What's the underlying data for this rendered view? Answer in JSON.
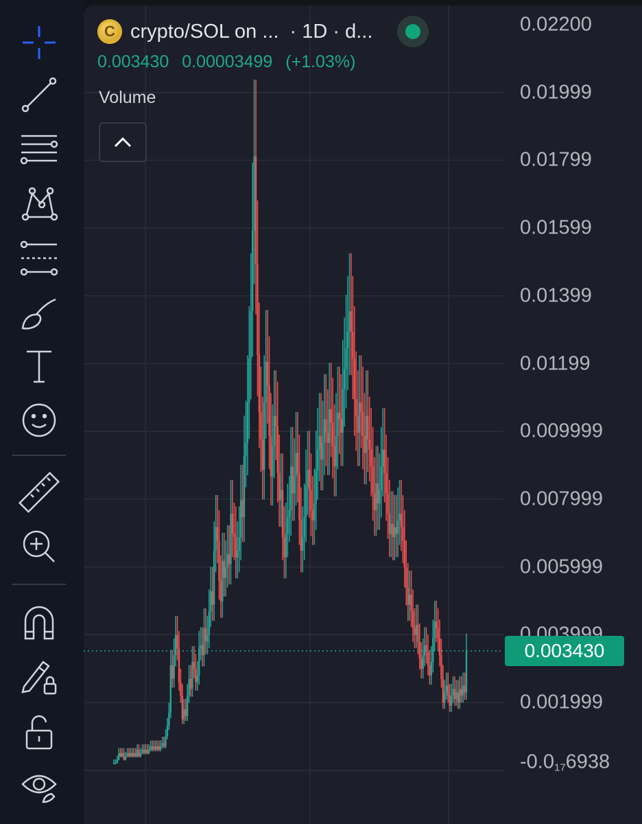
{
  "header": {
    "symbol": "crypto/SOL on ...",
    "interval": "· 1D · d...",
    "last_price": "0.003430",
    "change_abs": "0.00003499",
    "change_pct": "(+1.03%)",
    "market_status_color": "#0fa67d"
  },
  "panel": {
    "volume_label": "Volume",
    "collapse_icon": "chevron-up-icon"
  },
  "toolbar": {
    "tools": [
      "crosshair-icon",
      "trend-line-icon",
      "fib-retracement-icon",
      "pattern-icon",
      "forecast-icon",
      "brush-icon",
      "text-icon",
      "emoji-icon",
      "ruler-icon",
      "zoom-in-icon",
      "magnet-icon",
      "lock-drawing-icon",
      "unlock-icon",
      "eye-icon"
    ]
  },
  "price_axis": {
    "labels": [
      "0.02200",
      "0.01999",
      "0.01799",
      "0.01599",
      "0.01399",
      "0.01199",
      "0.009999",
      "0.007999",
      "0.005999",
      "0.003999",
      "0.001999"
    ],
    "bottom_prefix": "-0.0",
    "bottom_sub": "17",
    "bottom_suffix": "6938",
    "last_price_badge": "0.003430",
    "badge_color": "#0f9b78"
  },
  "colors": {
    "up": "#26a69a",
    "down": "#ef5350"
  },
  "chart_data": {
    "type": "candlestick",
    "interval": "1D",
    "y_axis_ticks": [
      0.022,
      0.01999,
      0.01799,
      0.01599,
      0.01399,
      0.01199,
      0.009999,
      0.007999,
      0.005999,
      0.003999,
      0.001999
    ],
    "last_price": 0.00343,
    "close_estimates": [
      0.0001,
      0.0001,
      0.0002,
      0.0004,
      0.0003,
      0.0004,
      0.0002,
      0.0003,
      0.0004,
      0.0003,
      0.0004,
      0.0003,
      0.0004,
      0.0003,
      0.0005,
      0.0003,
      0.0004,
      0.0005,
      0.0004,
      0.0005,
      0.0004,
      0.0005,
      0.0006,
      0.0005,
      0.0006,
      0.0005,
      0.0006,
      0.0005,
      0.0006,
      0.0007,
      0.0006,
      0.0009,
      0.0012,
      0.0016,
      0.003,
      0.0026,
      0.0033,
      0.0039,
      0.0035,
      0.0025,
      0.0021,
      0.0014,
      0.0017,
      0.0015,
      0.0021,
      0.0026,
      0.0023,
      0.0031,
      0.0029,
      0.0025,
      0.0027,
      0.0035,
      0.0036,
      0.0033,
      0.0041,
      0.0037,
      0.0039,
      0.0046,
      0.0052,
      0.0048,
      0.0064,
      0.0071,
      0.0067,
      0.0055,
      0.0049,
      0.0061,
      0.0056,
      0.0059,
      0.0063,
      0.006,
      0.0075,
      0.0069,
      0.0068,
      0.0062,
      0.0064,
      0.0068,
      0.0079,
      0.0074,
      0.0092,
      0.0096,
      0.0108,
      0.0121,
      0.0135,
      0.0159,
      0.0181,
      0.0149,
      0.0122,
      0.0105,
      0.0097,
      0.0088,
      0.0108,
      0.012,
      0.0113,
      0.0098,
      0.0086,
      0.0095,
      0.0104,
      0.0101,
      0.0087,
      0.0079,
      0.0082,
      0.0068,
      0.0062,
      0.0069,
      0.0074,
      0.0076,
      0.0089,
      0.0081,
      0.0086,
      0.0093,
      0.0087,
      0.0073,
      0.0064,
      0.0068,
      0.0074,
      0.0083,
      0.0088,
      0.0082,
      0.0076,
      0.0073,
      0.0078,
      0.0088,
      0.0094,
      0.0098,
      0.0091,
      0.0096,
      0.0103,
      0.0099,
      0.0096,
      0.0106,
      0.0102,
      0.0095,
      0.0089,
      0.0098,
      0.0105,
      0.0103,
      0.0099,
      0.0112,
      0.0118,
      0.0124,
      0.0129,
      0.0135,
      0.0129,
      0.0121,
      0.0109,
      0.0104,
      0.0099,
      0.0108,
      0.0105,
      0.0098,
      0.0093,
      0.0104,
      0.0097,
      0.0094,
      0.0089,
      0.0081,
      0.0076,
      0.0084,
      0.0078,
      0.0082,
      0.0089,
      0.0094,
      0.0087,
      0.0081,
      0.0075,
      0.0069,
      0.0072,
      0.0068,
      0.0071,
      0.0069,
      0.0073,
      0.0075,
      0.0071,
      0.0067,
      0.0059,
      0.0053,
      0.0048,
      0.0051,
      0.0046,
      0.0041,
      0.0039,
      0.0042,
      0.0037,
      0.0032,
      0.0029,
      0.0033,
      0.0036,
      0.0034,
      0.003,
      0.0027,
      0.0031,
      0.0038,
      0.0043,
      0.0041,
      0.0038,
      0.0033,
      0.0026,
      0.0019,
      0.0022,
      0.0024,
      0.0021,
      0.0018,
      0.0021,
      0.0023,
      0.002,
      0.0022,
      0.0019,
      0.0023,
      0.0021,
      0.0024,
      0.0022,
      0.00343
    ]
  }
}
